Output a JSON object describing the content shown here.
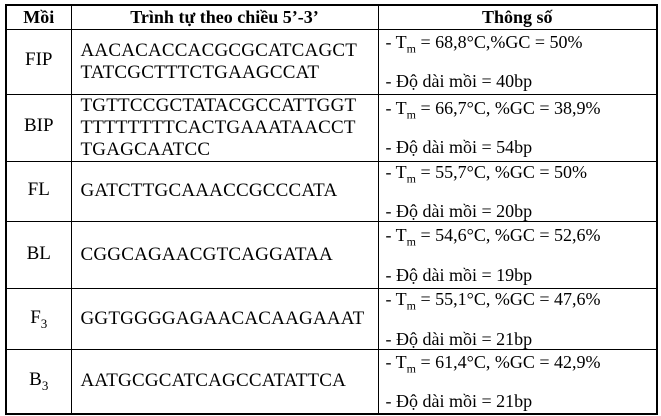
{
  "labels": {
    "tm_prefix": "- T",
    "tm_sub": "m"
  },
  "table": {
    "headers": [
      "Mồi",
      "Trình tự theo chiều 5’-3’",
      "Thông số"
    ],
    "rows": [
      {
        "name_base": "FIP",
        "name_sub": "",
        "sequence": "AACACACCACGCGCATCAGCT\nTATCGCTTTCTGAAGCCAT",
        "tm_rest": " = 68,8°C,%GC = 50%",
        "length_line": "- Độ dài mồi = 40bp"
      },
      {
        "name_base": "BIP",
        "name_sub": "",
        "sequence": "TGTTCCGCTATACGCCATTGGT\nTTTTTTTTCACTGAAATAACCT\nTGAGCAATCC",
        "tm_rest": " = 66,7°C, %GC = 38,9%",
        "length_line": "- Độ dài mồi = 54bp"
      },
      {
        "name_base": "FL",
        "name_sub": "",
        "sequence": "GATCTTGCAAACCGCCCATA",
        "tm_rest": " = 55,7°C, %GC = 50%",
        "length_line": "- Độ dài mồi = 20bp"
      },
      {
        "name_base": "BL",
        "name_sub": "",
        "sequence": "CGGCAGAACGTCAGGATAA",
        "tm_rest": " = 54,6°C, %GC = 52,6%",
        "length_line": "- Độ dài mồi = 19bp"
      },
      {
        "name_base": "F",
        "name_sub": "3",
        "sequence": "GGTGGGGAGAACACAAGAAAT",
        "tm_rest": " = 55,1°C, %GC = 47,6%",
        "length_line": "- Độ dài mồi = 21bp"
      },
      {
        "name_base": "B",
        "name_sub": "3",
        "sequence": "AATGCGCATCAGCCATATTCA",
        "tm_rest": " = 61,4°C, %GC = 42,9%",
        "length_line": "- Độ dài mồi = 21bp"
      }
    ]
  },
  "colors": {
    "border": "#000000",
    "background": "#ffffff",
    "text": "#000000"
  }
}
